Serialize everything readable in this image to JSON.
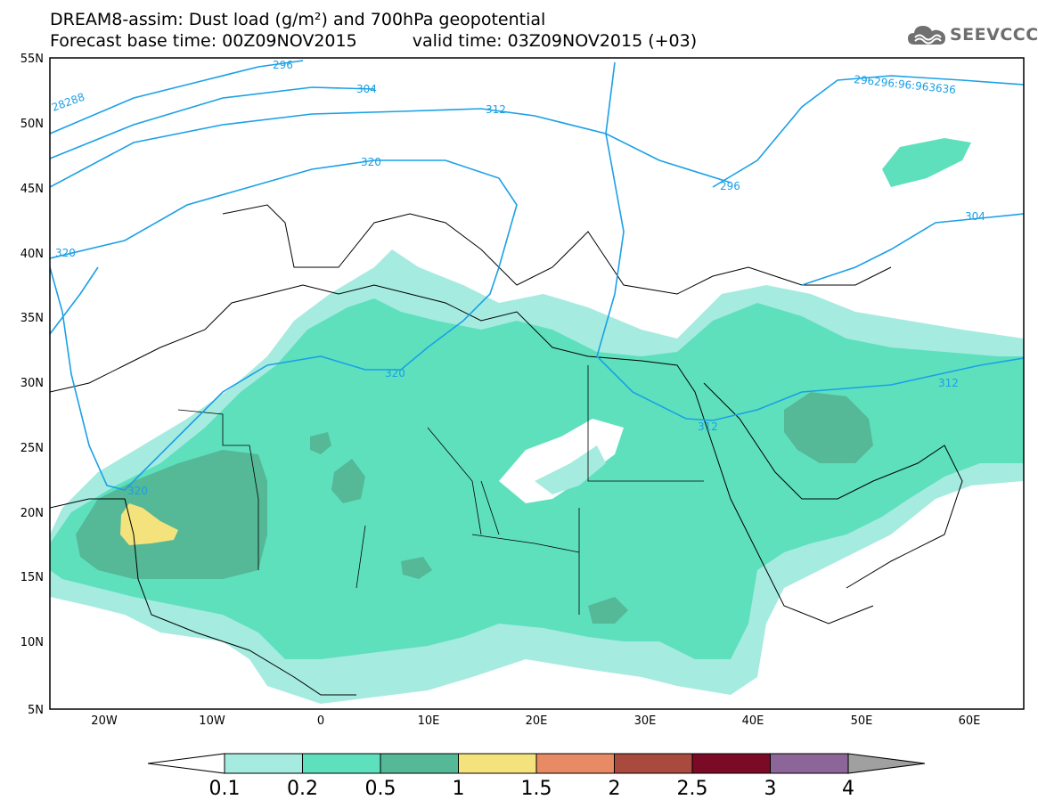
{
  "title": {
    "line1": "DREAM8-assim: Dust load (g/m²) and 700hPa geopotential",
    "base_time": "Forecast base time: 00Z09NOV2015",
    "valid_time": "valid time: 03Z09NOV2015 (+03)"
  },
  "logo": {
    "icon": "cloud-logo-icon",
    "text": "SEEVCCC"
  },
  "map": {
    "lon_range": [
      -25,
      65
    ],
    "lat_range": [
      5,
      55
    ],
    "lon_labels": [
      "20W",
      "10W",
      "0",
      "10E",
      "20E",
      "30E",
      "40E",
      "50E",
      "60E"
    ],
    "lat_labels": [
      "5N",
      "10N",
      "15N",
      "20N",
      "25N",
      "30N",
      "35N",
      "40N",
      "45N",
      "50N",
      "55N"
    ],
    "contour_labels": [
      "296",
      "28288",
      "304",
      "312",
      "320",
      "320",
      "320",
      "320",
      "296296:96:963636",
      "296",
      "304",
      "312",
      "312"
    ],
    "contour_color": "#1aa0e6"
  },
  "legend": {
    "ticks": [
      "0.1",
      "0.2",
      "0.5",
      "1",
      "1.5",
      "2",
      "2.5",
      "3",
      "4"
    ],
    "colors": [
      "#a6ebe0",
      "#5ee0bd",
      "#55b896",
      "#f4e37c",
      "#e88a64",
      "#a94a3e",
      "#7a0a26",
      "#8c6699",
      "#a0a0a0"
    ]
  }
}
